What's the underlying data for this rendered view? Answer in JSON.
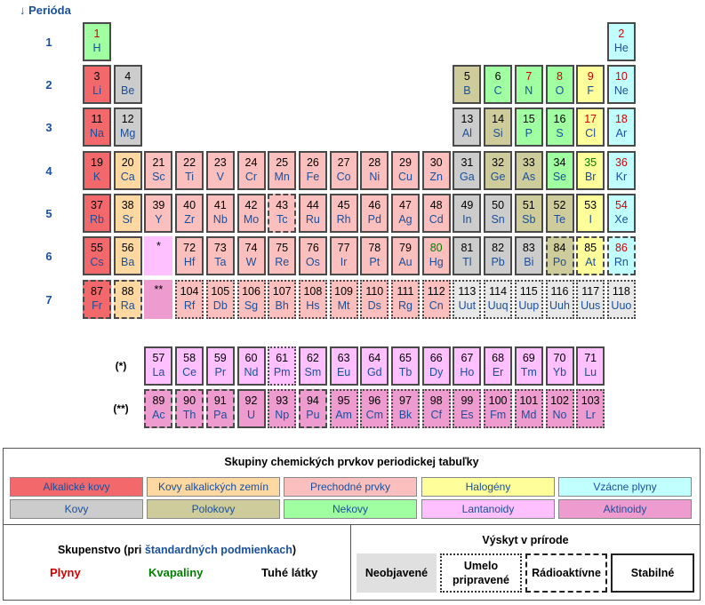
{
  "header": {
    "title": "↓ Perióda"
  },
  "periods": [
    "1",
    "2",
    "3",
    "4",
    "5",
    "6",
    "7"
  ],
  "series_labels": [
    "(*)",
    "(**)"
  ],
  "placeholders": [
    "*",
    "**"
  ],
  "elements": [
    {
      "n": "1",
      "s": "H",
      "cat": "non",
      "st": "gas",
      "b": "solid",
      "row": 0,
      "col": 0
    },
    {
      "n": "2",
      "s": "He",
      "cat": "nob",
      "st": "gas",
      "b": "solid",
      "row": 0,
      "col": 17
    },
    {
      "n": "3",
      "s": "Li",
      "cat": "alk",
      "st": "sol",
      "b": "solid",
      "row": 1,
      "col": 0
    },
    {
      "n": "4",
      "s": "Be",
      "cat": "met",
      "st": "sol",
      "b": "solid",
      "row": 1,
      "col": 1
    },
    {
      "n": "5",
      "s": "B",
      "cat": "poly",
      "st": "sol",
      "b": "solid",
      "row": 1,
      "col": 12
    },
    {
      "n": "6",
      "s": "C",
      "cat": "non",
      "st": "sol",
      "b": "solid",
      "row": 1,
      "col": 13
    },
    {
      "n": "7",
      "s": "N",
      "cat": "non",
      "st": "gas",
      "b": "solid",
      "row": 1,
      "col": 14
    },
    {
      "n": "8",
      "s": "O",
      "cat": "non",
      "st": "gas",
      "b": "solid",
      "row": 1,
      "col": 15
    },
    {
      "n": "9",
      "s": "F",
      "cat": "hal",
      "st": "gas",
      "b": "solid",
      "row": 1,
      "col": 16
    },
    {
      "n": "10",
      "s": "Ne",
      "cat": "nob",
      "st": "gas",
      "b": "solid",
      "row": 1,
      "col": 17
    },
    {
      "n": "11",
      "s": "Na",
      "cat": "alk",
      "st": "sol",
      "b": "solid",
      "row": 2,
      "col": 0
    },
    {
      "n": "12",
      "s": "Mg",
      "cat": "met",
      "st": "sol",
      "b": "solid",
      "row": 2,
      "col": 1
    },
    {
      "n": "13",
      "s": "Al",
      "cat": "met",
      "st": "sol",
      "b": "solid",
      "row": 2,
      "col": 12
    },
    {
      "n": "14",
      "s": "Si",
      "cat": "poly",
      "st": "sol",
      "b": "solid",
      "row": 2,
      "col": 13
    },
    {
      "n": "15",
      "s": "P",
      "cat": "non",
      "st": "sol",
      "b": "solid",
      "row": 2,
      "col": 14
    },
    {
      "n": "16",
      "s": "S",
      "cat": "non",
      "st": "sol",
      "b": "solid",
      "row": 2,
      "col": 15
    },
    {
      "n": "17",
      "s": "Cl",
      "cat": "hal",
      "st": "gas",
      "b": "solid",
      "row": 2,
      "col": 16
    },
    {
      "n": "18",
      "s": "Ar",
      "cat": "nob",
      "st": "gas",
      "b": "solid",
      "row": 2,
      "col": 17
    },
    {
      "n": "19",
      "s": "K",
      "cat": "alk",
      "st": "sol",
      "b": "solid",
      "row": 3,
      "col": 0
    },
    {
      "n": "20",
      "s": "Ca",
      "cat": "aze",
      "st": "sol",
      "b": "solid",
      "row": 3,
      "col": 1
    },
    {
      "n": "21",
      "s": "Sc",
      "cat": "tra",
      "st": "sol",
      "b": "solid",
      "row": 3,
      "col": 2
    },
    {
      "n": "22",
      "s": "Ti",
      "cat": "tra",
      "st": "sol",
      "b": "solid",
      "row": 3,
      "col": 3
    },
    {
      "n": "23",
      "s": "V",
      "cat": "tra",
      "st": "sol",
      "b": "solid",
      "row": 3,
      "col": 4
    },
    {
      "n": "24",
      "s": "Cr",
      "cat": "tra",
      "st": "sol",
      "b": "solid",
      "row": 3,
      "col": 5
    },
    {
      "n": "25",
      "s": "Mn",
      "cat": "tra",
      "st": "sol",
      "b": "solid",
      "row": 3,
      "col": 6
    },
    {
      "n": "26",
      "s": "Fe",
      "cat": "tra",
      "st": "sol",
      "b": "solid",
      "row": 3,
      "col": 7
    },
    {
      "n": "27",
      "s": "Co",
      "cat": "tra",
      "st": "sol",
      "b": "solid",
      "row": 3,
      "col": 8
    },
    {
      "n": "28",
      "s": "Ni",
      "cat": "tra",
      "st": "sol",
      "b": "solid",
      "row": 3,
      "col": 9
    },
    {
      "n": "29",
      "s": "Cu",
      "cat": "tra",
      "st": "sol",
      "b": "solid",
      "row": 3,
      "col": 10
    },
    {
      "n": "30",
      "s": "Zn",
      "cat": "tra",
      "st": "sol",
      "b": "solid",
      "row": 3,
      "col": 11
    },
    {
      "n": "31",
      "s": "Ga",
      "cat": "met",
      "st": "sol",
      "b": "solid",
      "row": 3,
      "col": 12
    },
    {
      "n": "32",
      "s": "Ge",
      "cat": "poly",
      "st": "sol",
      "b": "solid",
      "row": 3,
      "col": 13
    },
    {
      "n": "33",
      "s": "As",
      "cat": "poly",
      "st": "sol",
      "b": "solid",
      "row": 3,
      "col": 14
    },
    {
      "n": "34",
      "s": "Se",
      "cat": "non",
      "st": "sol",
      "b": "solid",
      "row": 3,
      "col": 15
    },
    {
      "n": "35",
      "s": "Br",
      "cat": "hal",
      "st": "liq",
      "b": "solid",
      "row": 3,
      "col": 16
    },
    {
      "n": "36",
      "s": "Kr",
      "cat": "nob",
      "st": "gas",
      "b": "solid",
      "row": 3,
      "col": 17
    },
    {
      "n": "37",
      "s": "Rb",
      "cat": "alk",
      "st": "sol",
      "b": "solid",
      "row": 4,
      "col": 0
    },
    {
      "n": "38",
      "s": "Sr",
      "cat": "aze",
      "st": "sol",
      "b": "solid",
      "row": 4,
      "col": 1
    },
    {
      "n": "39",
      "s": "Y",
      "cat": "tra",
      "st": "sol",
      "b": "solid",
      "row": 4,
      "col": 2
    },
    {
      "n": "40",
      "s": "Zr",
      "cat": "tra",
      "st": "sol",
      "b": "solid",
      "row": 4,
      "col": 3
    },
    {
      "n": "41",
      "s": "Nb",
      "cat": "tra",
      "st": "sol",
      "b": "solid",
      "row": 4,
      "col": 4
    },
    {
      "n": "42",
      "s": "Mo",
      "cat": "tra",
      "st": "sol",
      "b": "solid",
      "row": 4,
      "col": 5
    },
    {
      "n": "43",
      "s": "Tc",
      "cat": "tra",
      "st": "sol",
      "b": "radio",
      "row": 4,
      "col": 6
    },
    {
      "n": "44",
      "s": "Ru",
      "cat": "tra",
      "st": "sol",
      "b": "solid",
      "row": 4,
      "col": 7
    },
    {
      "n": "45",
      "s": "Rh",
      "cat": "tra",
      "st": "sol",
      "b": "solid",
      "row": 4,
      "col": 8
    },
    {
      "n": "46",
      "s": "Pd",
      "cat": "tra",
      "st": "sol",
      "b": "solid",
      "row": 4,
      "col": 9
    },
    {
      "n": "47",
      "s": "Ag",
      "cat": "tra",
      "st": "sol",
      "b": "solid",
      "row": 4,
      "col": 10
    },
    {
      "n": "48",
      "s": "Cd",
      "cat": "tra",
      "st": "sol",
      "b": "solid",
      "row": 4,
      "col": 11
    },
    {
      "n": "49",
      "s": "In",
      "cat": "met",
      "st": "sol",
      "b": "solid",
      "row": 4,
      "col": 12
    },
    {
      "n": "50",
      "s": "Sn",
      "cat": "met",
      "st": "sol",
      "b": "solid",
      "row": 4,
      "col": 13
    },
    {
      "n": "51",
      "s": "Sb",
      "cat": "poly",
      "st": "sol",
      "b": "solid",
      "row": 4,
      "col": 14
    },
    {
      "n": "52",
      "s": "Te",
      "cat": "poly",
      "st": "sol",
      "b": "solid",
      "row": 4,
      "col": 15
    },
    {
      "n": "53",
      "s": "I",
      "cat": "hal",
      "st": "sol",
      "b": "solid",
      "row": 4,
      "col": 16
    },
    {
      "n": "54",
      "s": "Xe",
      "cat": "nob",
      "st": "gas",
      "b": "solid",
      "row": 4,
      "col": 17
    },
    {
      "n": "55",
      "s": "Cs",
      "cat": "alk",
      "st": "sol",
      "b": "solid",
      "row": 5,
      "col": 0
    },
    {
      "n": "56",
      "s": "Ba",
      "cat": "aze",
      "st": "sol",
      "b": "solid",
      "row": 5,
      "col": 1
    },
    {
      "n": "72",
      "s": "Hf",
      "cat": "tra",
      "st": "sol",
      "b": "solid",
      "row": 5,
      "col": 3
    },
    {
      "n": "73",
      "s": "Ta",
      "cat": "tra",
      "st": "sol",
      "b": "solid",
      "row": 5,
      "col": 4
    },
    {
      "n": "74",
      "s": "W",
      "cat": "tra",
      "st": "sol",
      "b": "solid",
      "row": 5,
      "col": 5
    },
    {
      "n": "75",
      "s": "Re",
      "cat": "tra",
      "st": "sol",
      "b": "solid",
      "row": 5,
      "col": 6
    },
    {
      "n": "76",
      "s": "Os",
      "cat": "tra",
      "st": "sol",
      "b": "solid",
      "row": 5,
      "col": 7
    },
    {
      "n": "77",
      "s": "Ir",
      "cat": "tra",
      "st": "sol",
      "b": "solid",
      "row": 5,
      "col": 8
    },
    {
      "n": "78",
      "s": "Pt",
      "cat": "tra",
      "st": "sol",
      "b": "solid",
      "row": 5,
      "col": 9
    },
    {
      "n": "79",
      "s": "Au",
      "cat": "tra",
      "st": "sol",
      "b": "solid",
      "row": 5,
      "col": 10
    },
    {
      "n": "80",
      "s": "Hg",
      "cat": "tra",
      "st": "liq",
      "b": "solid",
      "row": 5,
      "col": 11
    },
    {
      "n": "81",
      "s": "Tl",
      "cat": "met",
      "st": "sol",
      "b": "solid",
      "row": 5,
      "col": 12
    },
    {
      "n": "82",
      "s": "Pb",
      "cat": "met",
      "st": "sol",
      "b": "solid",
      "row": 5,
      "col": 13
    },
    {
      "n": "83",
      "s": "Bi",
      "cat": "met",
      "st": "sol",
      "b": "solid",
      "row": 5,
      "col": 14
    },
    {
      "n": "84",
      "s": "Po",
      "cat": "poly",
      "st": "sol",
      "b": "radio",
      "row": 5,
      "col": 15
    },
    {
      "n": "85",
      "s": "At",
      "cat": "hal",
      "st": "sol",
      "b": "radio",
      "row": 5,
      "col": 16
    },
    {
      "n": "86",
      "s": "Rn",
      "cat": "nob",
      "st": "gas",
      "b": "radio",
      "row": 5,
      "col": 17
    },
    {
      "n": "87",
      "s": "Fr",
      "cat": "alk",
      "st": "sol",
      "b": "radio",
      "row": 6,
      "col": 0
    },
    {
      "n": "88",
      "s": "Ra",
      "cat": "aze",
      "st": "sol",
      "b": "radio",
      "row": 6,
      "col": 1
    },
    {
      "n": "104",
      "s": "Rf",
      "cat": "tra",
      "st": "sol",
      "b": "synth",
      "row": 6,
      "col": 3
    },
    {
      "n": "105",
      "s": "Db",
      "cat": "tra",
      "st": "sol",
      "b": "synth",
      "row": 6,
      "col": 4
    },
    {
      "n": "106",
      "s": "Sg",
      "cat": "tra",
      "st": "sol",
      "b": "synth",
      "row": 6,
      "col": 5
    },
    {
      "n": "107",
      "s": "Bh",
      "cat": "tra",
      "st": "sol",
      "b": "synth",
      "row": 6,
      "col": 6
    },
    {
      "n": "108",
      "s": "Hs",
      "cat": "tra",
      "st": "sol",
      "b": "synth",
      "row": 6,
      "col": 7
    },
    {
      "n": "109",
      "s": "Mt",
      "cat": "tra",
      "st": "sol",
      "b": "synth",
      "row": 6,
      "col": 8
    },
    {
      "n": "110",
      "s": "Ds",
      "cat": "tra",
      "st": "sol",
      "b": "synth",
      "row": 6,
      "col": 9
    },
    {
      "n": "111",
      "s": "Rg",
      "cat": "tra",
      "st": "sol",
      "b": "synth",
      "row": 6,
      "col": 10
    },
    {
      "n": "112",
      "s": "Cn",
      "cat": "tra",
      "st": "sol",
      "b": "synth",
      "row": 6,
      "col": 11
    },
    {
      "n": "113",
      "s": "Uut",
      "cat": "unk",
      "st": "sol",
      "b": "synth",
      "row": 6,
      "col": 12
    },
    {
      "n": "114",
      "s": "Uuq",
      "cat": "unk",
      "st": "sol",
      "b": "synth",
      "row": 6,
      "col": 13
    },
    {
      "n": "115",
      "s": "Uup",
      "cat": "unk",
      "st": "sol",
      "b": "synth",
      "row": 6,
      "col": 14
    },
    {
      "n": "116",
      "s": "Uuh",
      "cat": "unk",
      "st": "sol",
      "b": "synth",
      "row": 6,
      "col": 15
    },
    {
      "n": "117",
      "s": "Uus",
      "cat": "unk",
      "st": "sol",
      "b": "synth",
      "row": 6,
      "col": 16
    },
    {
      "n": "118",
      "s": "Uuo",
      "cat": "unk",
      "st": "sol",
      "b": "synth",
      "row": 6,
      "col": 17
    },
    {
      "n": "57",
      "s": "La",
      "cat": "lan",
      "st": "sol",
      "b": "solid",
      "row": 7,
      "col": 2
    },
    {
      "n": "58",
      "s": "Ce",
      "cat": "lan",
      "st": "sol",
      "b": "solid",
      "row": 7,
      "col": 3
    },
    {
      "n": "59",
      "s": "Pr",
      "cat": "lan",
      "st": "sol",
      "b": "solid",
      "row": 7,
      "col": 4
    },
    {
      "n": "60",
      "s": "Nd",
      "cat": "lan",
      "st": "sol",
      "b": "solid",
      "row": 7,
      "col": 5
    },
    {
      "n": "61",
      "s": "Pm",
      "cat": "lan",
      "st": "sol",
      "b": "synth",
      "row": 7,
      "col": 6
    },
    {
      "n": "62",
      "s": "Sm",
      "cat": "lan",
      "st": "sol",
      "b": "solid",
      "row": 7,
      "col": 7
    },
    {
      "n": "63",
      "s": "Eu",
      "cat": "lan",
      "st": "sol",
      "b": "solid",
      "row": 7,
      "col": 8
    },
    {
      "n": "64",
      "s": "Gd",
      "cat": "lan",
      "st": "sol",
      "b": "solid",
      "row": 7,
      "col": 9
    },
    {
      "n": "65",
      "s": "Tb",
      "cat": "lan",
      "st": "sol",
      "b": "solid",
      "row": 7,
      "col": 10
    },
    {
      "n": "66",
      "s": "Dy",
      "cat": "lan",
      "st": "sol",
      "b": "solid",
      "row": 7,
      "col": 11
    },
    {
      "n": "67",
      "s": "Ho",
      "cat": "lan",
      "st": "sol",
      "b": "solid",
      "row": 7,
      "col": 12
    },
    {
      "n": "68",
      "s": "Er",
      "cat": "lan",
      "st": "sol",
      "b": "solid",
      "row": 7,
      "col": 13
    },
    {
      "n": "69",
      "s": "Tm",
      "cat": "lan",
      "st": "sol",
      "b": "solid",
      "row": 7,
      "col": 14
    },
    {
      "n": "70",
      "s": "Yb",
      "cat": "lan",
      "st": "sol",
      "b": "solid",
      "row": 7,
      "col": 15
    },
    {
      "n": "71",
      "s": "Lu",
      "cat": "lan",
      "st": "sol",
      "b": "solid",
      "row": 7,
      "col": 16
    },
    {
      "n": "89",
      "s": "Ac",
      "cat": "act",
      "st": "sol",
      "b": "radio",
      "row": 8,
      "col": 2
    },
    {
      "n": "90",
      "s": "Th",
      "cat": "act",
      "st": "sol",
      "b": "radio",
      "row": 8,
      "col": 3
    },
    {
      "n": "91",
      "s": "Pa",
      "cat": "act",
      "st": "sol",
      "b": "radio",
      "row": 8,
      "col": 4
    },
    {
      "n": "92",
      "s": "U",
      "cat": "act",
      "st": "sol",
      "b": "solid",
      "row": 8,
      "col": 5
    },
    {
      "n": "93",
      "s": "Np",
      "cat": "act",
      "st": "sol",
      "b": "synth",
      "row": 8,
      "col": 6
    },
    {
      "n": "94",
      "s": "Pu",
      "cat": "act",
      "st": "sol",
      "b": "radio",
      "row": 8,
      "col": 7
    },
    {
      "n": "95",
      "s": "Am",
      "cat": "act",
      "st": "sol",
      "b": "synth",
      "row": 8,
      "col": 8
    },
    {
      "n": "96",
      "s": "Cm",
      "cat": "act",
      "st": "sol",
      "b": "synth",
      "row": 8,
      "col": 9
    },
    {
      "n": "97",
      "s": "Bk",
      "cat": "act",
      "st": "sol",
      "b": "synth",
      "row": 8,
      "col": 10
    },
    {
      "n": "98",
      "s": "Cf",
      "cat": "act",
      "st": "sol",
      "b": "synth",
      "row": 8,
      "col": 11
    },
    {
      "n": "99",
      "s": "Es",
      "cat": "act",
      "st": "sol",
      "b": "synth",
      "row": 8,
      "col": 12
    },
    {
      "n": "100",
      "s": "Fm",
      "cat": "act",
      "st": "sol",
      "b": "synth",
      "row": 8,
      "col": 13
    },
    {
      "n": "101",
      "s": "Md",
      "cat": "act",
      "st": "sol",
      "b": "synth",
      "row": 8,
      "col": 14
    },
    {
      "n": "102",
      "s": "No",
      "cat": "act",
      "st": "sol",
      "b": "synth",
      "row": 8,
      "col": 15
    },
    {
      "n": "103",
      "s": "Lr",
      "cat": "act",
      "st": "sol",
      "b": "synth",
      "row": 8,
      "col": 16
    }
  ],
  "legend": {
    "title": "Skupiny chemických prvkov periodickej tabuľky",
    "categories": [
      {
        "key": "alk",
        "label": "Alkalické kovy",
        "color": "#f3696b"
      },
      {
        "key": "aze",
        "label": "Kovy alkalických zemín",
        "color": "#fed8a1"
      },
      {
        "key": "tra",
        "label": "Prechodné prvky",
        "color": "#fbc0bd"
      },
      {
        "key": "hal",
        "label": "Halogény",
        "color": "#fefe9a"
      },
      {
        "key": "nob",
        "label": "Vzácne plyny",
        "color": "#c1ffff"
      },
      {
        "key": "met",
        "label": "Kovy",
        "color": "#cccccc"
      },
      {
        "key": "poly",
        "label": "Polokovy",
        "color": "#cdcc9a"
      },
      {
        "key": "non",
        "label": "Nekovy",
        "color": "#a0ffa0"
      },
      {
        "key": "lan",
        "label": "Lantanoidy",
        "color": "#ffc0ff"
      },
      {
        "key": "act",
        "label": "Aktinoidy",
        "color": "#ee9ccf"
      }
    ],
    "state": {
      "title_prefix": "Skupenstvo (pri ",
      "title_link": "štandardných podmienkach",
      "title_suffix": ")",
      "gas": "Plyny",
      "liquid": "Kvapaliny",
      "solid": "Tuhé látky",
      "gas_color": "#d00000",
      "liquid_color": "#008000"
    },
    "occurrence": {
      "title": "Výskyt v prírode",
      "undiscovered": "Neobjavené",
      "synthetic": "Umelo pripravené",
      "radioactive": "Rádioaktívne",
      "stable": "Stabilné"
    }
  }
}
